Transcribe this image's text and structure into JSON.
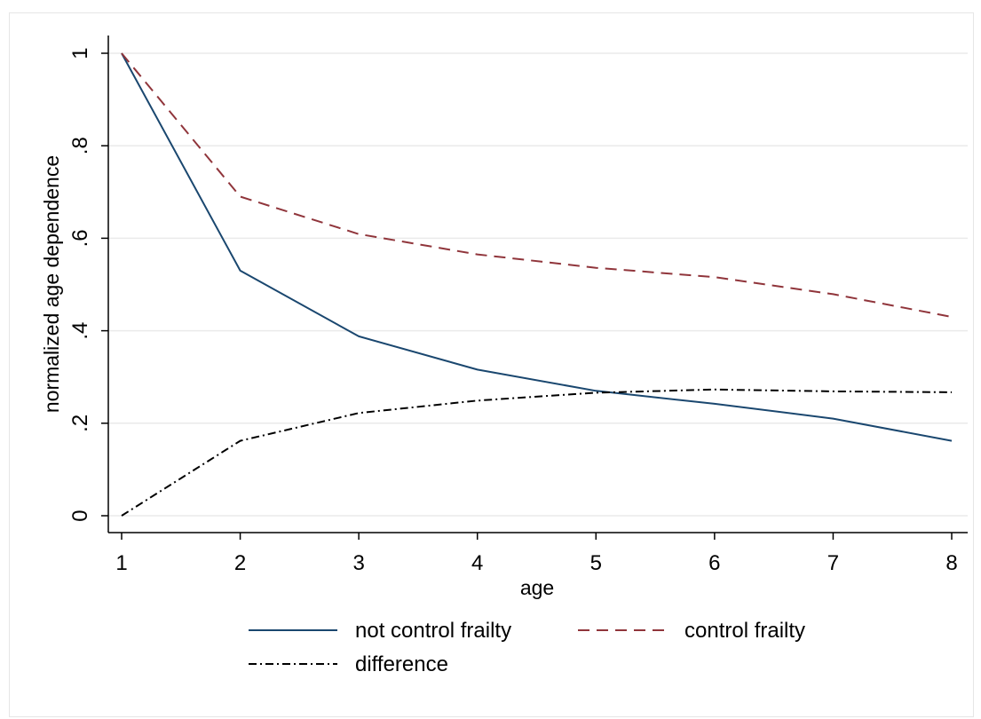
{
  "chart_data": {
    "type": "line",
    "xlabel": "age",
    "ylabel": "normalized age dependence",
    "x": [
      1,
      2,
      3,
      4,
      5,
      6,
      7,
      8
    ],
    "xlim": [
      1,
      8
    ],
    "ylim": [
      0,
      1
    ],
    "xticks": [
      "1",
      "2",
      "3",
      "4",
      "5",
      "6",
      "7",
      "8"
    ],
    "yticks": [
      {
        "value": 0,
        "label": "0"
      },
      {
        "value": 0.2,
        "label": ".2"
      },
      {
        "value": 0.4,
        "label": ".4"
      },
      {
        "value": 0.6,
        "label": ".6"
      },
      {
        "value": 0.8,
        "label": ".8"
      },
      {
        "value": 1,
        "label": "1"
      }
    ],
    "grid": true,
    "legend_position": "bottom",
    "series": [
      {
        "name": "not control frailty",
        "values": [
          1.0,
          0.53,
          0.388,
          0.316,
          0.27,
          0.242,
          0.21,
          0.162
        ],
        "color": "#1a476f",
        "dash": "solid"
      },
      {
        "name": "control frailty",
        "values": [
          1.0,
          0.69,
          0.609,
          0.565,
          0.536,
          0.516,
          0.479,
          0.43
        ],
        "color": "#90353b",
        "dash": "dashed"
      },
      {
        "name": "difference",
        "values": [
          0.0,
          0.162,
          0.222,
          0.249,
          0.266,
          0.273,
          0.269,
          0.267
        ],
        "color": "#000000",
        "dash": "dashdot"
      }
    ]
  }
}
